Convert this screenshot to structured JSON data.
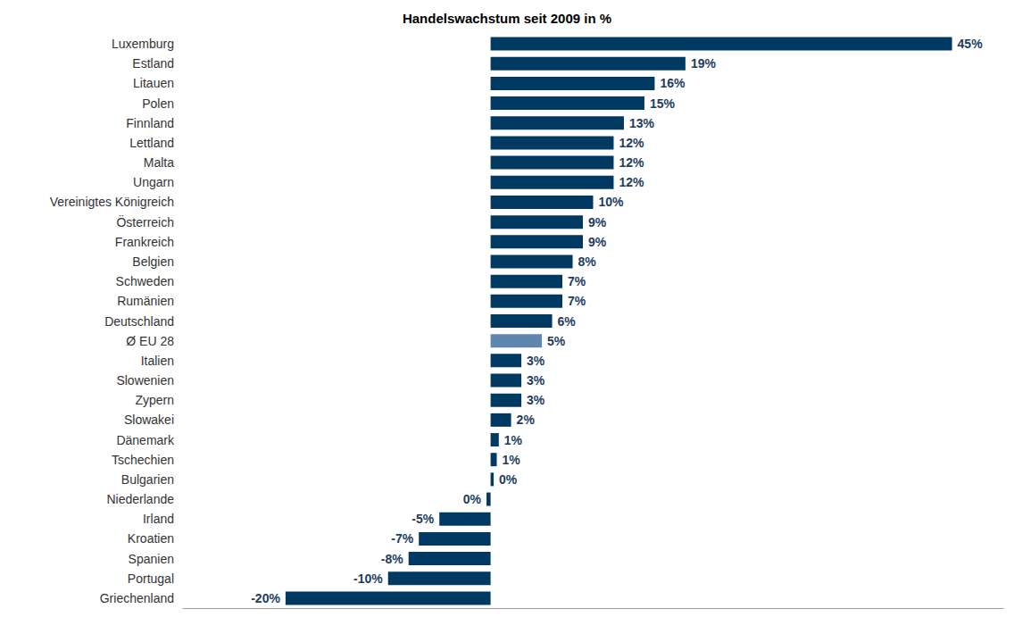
{
  "chart_data": {
    "type": "bar",
    "title": "Handelswachstum seit 2009 in %",
    "orientation": "horizontal",
    "categories": [
      "Luxemburg",
      "Estland",
      "Litauen",
      "Polen",
      "Finnland",
      "Lettland",
      "Malta",
      "Ungarn",
      "Vereinigtes Königreich",
      "Österreich",
      "Frankreich",
      "Belgien",
      "Schweden",
      "Rumänien",
      "Deutschland",
      "Ø EU 28",
      "Italien",
      "Slowenien",
      "Zypern",
      "Slowakei",
      "Dänemark",
      "Tschechien",
      "Bulgarien",
      "Niederlande",
      "Irland",
      "Kroatien",
      "Spanien",
      "Portugal",
      "Griechenland"
    ],
    "values": [
      45,
      19,
      16,
      15,
      13,
      12,
      12,
      12,
      10,
      9,
      9,
      8,
      7,
      7,
      6,
      5,
      3,
      3,
      3,
      2,
      0.8,
      0.6,
      0.3,
      -0.4,
      -5,
      -7,
      -8,
      -10,
      -20
    ],
    "value_labels": [
      "45%",
      "19%",
      "16%",
      "15%",
      "13%",
      "12%",
      "12%",
      "12%",
      "10%",
      "9%",
      "9%",
      "8%",
      "7%",
      "7%",
      "6%",
      "5%",
      "3%",
      "3%",
      "3%",
      "2%",
      "1%",
      "1%",
      "0%",
      "0%",
      "-5%",
      "-7%",
      "-8%",
      "-10%",
      "-20%"
    ],
    "colors": [
      "#003a63",
      "#003a63",
      "#003a63",
      "#003a63",
      "#003a63",
      "#003a63",
      "#003a63",
      "#003a63",
      "#003a63",
      "#003a63",
      "#003a63",
      "#003a63",
      "#003a63",
      "#003a63",
      "#003a63",
      "#5f86ae",
      "#003a63",
      "#003a63",
      "#003a63",
      "#003a63",
      "#003a63",
      "#003a63",
      "#003a63",
      "#003a63",
      "#003a63",
      "#003a63",
      "#003a63",
      "#003a63",
      "#003a63"
    ],
    "xlim": [
      -30,
      50
    ],
    "data_labels": true,
    "tick_labels": "y",
    "grid": false
  }
}
